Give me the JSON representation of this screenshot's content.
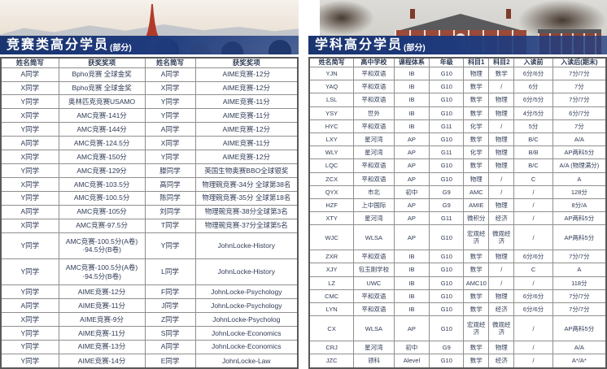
{
  "colors": {
    "banner_blue": "#1e3a7c",
    "table_text": "#2f3b55",
    "table_border": "#8f8f8f",
    "tower_red": "#b23a2a",
    "brick_red": "#9b4a39"
  },
  "left_panel": {
    "title": "竞赛类高分学员",
    "title_suffix": "(部分)",
    "headers": [
      "姓名简写",
      "获奖奖项",
      "姓名简写",
      "获奖奖项"
    ],
    "rows": [
      [
        "A同学",
        "Bpho竞赛 全球金奖",
        "A同学",
        "AIME竞赛-12分"
      ],
      [
        "X同学",
        "Bpho竞赛 全球金奖",
        "X同学",
        "AIME竞赛-12分"
      ],
      [
        "Y同学",
        "奥林匹克竞赛USAMO",
        "Y同学",
        "AIME竞赛-11分"
      ],
      [
        "X同学",
        "AMC竞赛-141分",
        "Y同学",
        "AIME竞赛-11分"
      ],
      [
        "Y同学",
        "AMC竞赛-144分",
        "A同学",
        "AIME竞赛-12分"
      ],
      [
        "A同学",
        "AMC竞赛-124.5分",
        "X同学",
        "AIME竞赛-11分"
      ],
      [
        "X同学",
        "AMC竞赛-150分",
        "Y同学",
        "AIME竞赛-12分"
      ],
      [
        "Y同学",
        "AMC竞赛-129分",
        "滕同学",
        "英国生物奥赛BBO全球银奖"
      ],
      [
        "X同学",
        "AMC竞赛-103.5分",
        "高同学",
        "物理碗竞赛-34分 全球第38名"
      ],
      [
        "Y同学",
        "AMC竞赛-100.5分",
        "陈同学",
        "物理碗竞赛-35分 全球第18名"
      ],
      [
        "A同学",
        "AMC竞赛-105分",
        "刘同学",
        "物理碗竞赛-38分全球第3名"
      ],
      [
        "X同学",
        "AMC竞赛-97.5分",
        "T同学",
        "物理碗竞赛-37分全球第5名"
      ],
      [
        "Y同学",
        "AMC竞赛-100.5分(A卷)\n·94.5分(B卷)",
        "Y同学",
        "JohnLocke-History"
      ],
      [
        "Y同学",
        "AMC竞赛-100.5分(A卷)\n·94.5分(B卷)",
        "L同学",
        "JohnLocke-History"
      ],
      [
        "Y同学",
        "AIME竞赛-12分",
        "F同学",
        "JohnLocke-Psychology"
      ],
      [
        "A同学",
        "AIME竞赛-11分",
        "J同学",
        "JohnLocke-Psychology"
      ],
      [
        "X同学",
        "AIME竞赛-9分",
        "Z同学",
        "JohnLocke-Psycholog"
      ],
      [
        "Y同学",
        "AIME竞赛-11分",
        "S同学",
        "JohnLocke-Economics"
      ],
      [
        "Y同学",
        "AIME竞赛-13分",
        "A同学",
        "JohnLocke-Economics"
      ],
      [
        "Y同学",
        "AIME竞赛-14分",
        "E同学",
        "JohnLocke-Law"
      ]
    ]
  },
  "right_panel": {
    "title": "学科高分学员",
    "title_suffix": "(部分)",
    "headers": [
      "姓名简写",
      "高中学校",
      "课程体系",
      "年级",
      "科目1",
      "科目2",
      "入读前",
      "入读后(期末)"
    ],
    "rows": [
      [
        "YJN",
        "平和双语",
        "IB",
        "G10",
        "物理",
        "数学",
        "6分/6分",
        "7分/7分"
      ],
      [
        "YAQ",
        "平和双语",
        "IB",
        "G10",
        "数学",
        "/",
        "6分",
        "7分"
      ],
      [
        "LSL",
        "平和双语",
        "IB",
        "G10",
        "数学",
        "物理",
        "6分/5分",
        "7分/7分"
      ],
      [
        "YSY",
        "世外",
        "IB",
        "G10",
        "数学",
        "物理",
        "4分/5分",
        "6分/7分"
      ],
      [
        "HYC",
        "平和双语",
        "IB",
        "G11",
        "化学",
        "/",
        "5分",
        "7分"
      ],
      [
        "LXY",
        "星河湾",
        "AP",
        "G10",
        "数学",
        "物理",
        "B/C",
        "A/A"
      ],
      [
        "WLY",
        "星河湾",
        "AP",
        "G11",
        "化学",
        "物理",
        "B/B",
        "AP两科5分"
      ],
      [
        "LQC",
        "平和双语",
        "AP",
        "G10",
        "数学",
        "物理",
        "B/C",
        "A/A (物理满分)"
      ],
      [
        "ZCX",
        "平和双语",
        "AP",
        "G10",
        "物理",
        "/",
        "C",
        "A"
      ],
      [
        "QYX",
        "市北",
        "初中",
        "G9",
        "AMC",
        "/",
        "/",
        "128分"
      ],
      [
        "HZF",
        "上中国际",
        "AP",
        "G9",
        "AMIE",
        "物理",
        "/",
        "8分/A"
      ],
      [
        "XTY",
        "星河湾",
        "AP",
        "G11",
        "微积分",
        "经济",
        "/",
        "AP两科5分"
      ],
      [
        "WJC",
        "WLSA",
        "AP",
        "G10",
        "宏观经济",
        "微观经济",
        "/",
        "AP两科5分"
      ],
      [
        "ZXR",
        "平和双语",
        "IB",
        "G10",
        "数学",
        "物理",
        "6分/6分",
        "7分/7分"
      ],
      [
        "XJY",
        "包玉刚学校",
        "IB",
        "G10",
        "数学",
        "/",
        "C",
        "A"
      ],
      [
        "LZ",
        "UWC",
        "IB",
        "G10",
        "AMC10",
        "/",
        "/",
        "118分"
      ],
      [
        "CMC",
        "平和双语",
        "IB",
        "G10",
        "数学",
        "物理",
        "6分/6分",
        "7分/7分"
      ],
      [
        "LYN",
        "平和双语",
        "IB",
        "G10",
        "数学",
        "经济",
        "6分/6分",
        "7分/7分"
      ],
      [
        "CX",
        "WLSA",
        "AP",
        "G10",
        "宏观经济",
        "微观经济",
        "/",
        "AP两科5分"
      ],
      [
        "CRJ",
        "星河湾",
        "初中",
        "G9",
        "数学",
        "物理",
        "/",
        "A/A"
      ],
      [
        "JZC",
        "领科",
        "Alevel",
        "G10",
        "数学",
        "经济",
        "/",
        "A*/A*"
      ]
    ]
  }
}
